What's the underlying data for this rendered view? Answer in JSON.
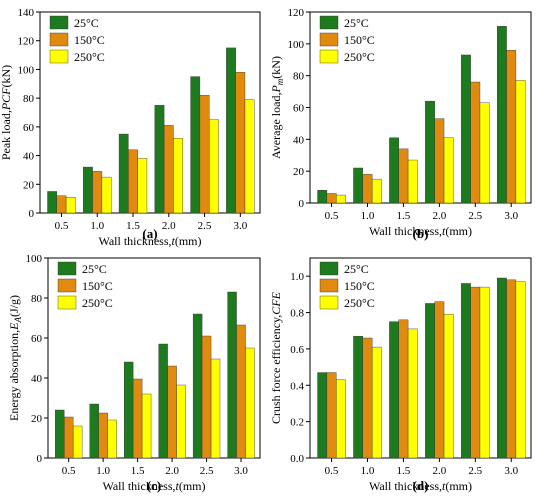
{
  "colors": {
    "c25": "#1e7a1e",
    "c150": "#e08a10",
    "c250": "#ffff00"
  },
  "chart_data": [
    {
      "type": "bar",
      "panel_label": "(a)",
      "categories": [
        "0.5",
        "1.0",
        "1.5",
        "2.0",
        "2.5",
        "3.0"
      ],
      "series": [
        {
          "name": "25°C",
          "values": [
            15,
            32,
            55,
            75,
            95,
            115
          ]
        },
        {
          "name": "150°C",
          "values": [
            12,
            29,
            44,
            61,
            82,
            98
          ]
        },
        {
          "name": "250°C",
          "values": [
            11,
            25,
            38,
            52,
            65,
            79
          ]
        }
      ],
      "xlabel_pre": "Wall thickness,",
      "xlabel_var": "t",
      "xlabel_post": "(mm)",
      "ylabel_pre": "Peak load,",
      "ylabel_var": "PCF",
      "ylabel_sub": "",
      "ylabel_post": "(kN)",
      "ylim": [
        0,
        140
      ],
      "yticks": [
        "0",
        "20",
        "40",
        "60",
        "80",
        "100",
        "120",
        "140"
      ],
      "legend_position": "top-left"
    },
    {
      "type": "bar",
      "panel_label": "(b)",
      "categories": [
        "0.5",
        "1.0",
        "1.5",
        "2.0",
        "2.5",
        "3.0"
      ],
      "series": [
        {
          "name": "25°C",
          "values": [
            8,
            22,
            41,
            64,
            93,
            111
          ]
        },
        {
          "name": "150°C",
          "values": [
            6,
            18,
            34,
            53,
            76,
            96
          ]
        },
        {
          "name": "250°C",
          "values": [
            5,
            15,
            27,
            41,
            63,
            77
          ]
        }
      ],
      "xlabel_pre": "Wall thickness,",
      "xlabel_var": "t",
      "xlabel_post": "(mm)",
      "ylabel_pre": "Average load,",
      "ylabel_var": "P",
      "ylabel_sub": "m",
      "ylabel_post": "(kN)",
      "ylim": [
        0,
        120
      ],
      "yticks": [
        "0",
        "20",
        "40",
        "60",
        "80",
        "100",
        "120"
      ],
      "legend_position": "top-left"
    },
    {
      "type": "bar",
      "panel_label": "(c)",
      "categories": [
        "0.5",
        "1.0",
        "1.5",
        "2.0",
        "2.5",
        "3.0"
      ],
      "series": [
        {
          "name": "25°C",
          "values": [
            24,
            27,
            48,
            57,
            72,
            83
          ]
        },
        {
          "name": "150°C",
          "values": [
            20.5,
            22.5,
            39.5,
            46,
            61,
            66.5
          ]
        },
        {
          "name": "250°C",
          "values": [
            16,
            19,
            32,
            36.5,
            49.5,
            55
          ]
        }
      ],
      "xlabel_pre": "Wall thickness,",
      "xlabel_var": "t",
      "xlabel_post": "(mm)",
      "ylabel_pre": "Energy absorption,",
      "ylabel_var": "E",
      "ylabel_sub": "A",
      "ylabel_post": "(J/g)",
      "ylim": [
        0,
        100
      ],
      "yticks": [
        "0",
        "20",
        "40",
        "60",
        "80",
        "100"
      ],
      "legend_position": "top-left"
    },
    {
      "type": "bar",
      "panel_label": "(d)",
      "categories": [
        "0.5",
        "1.0",
        "1.5",
        "2.0",
        "2.5",
        "3.0"
      ],
      "series": [
        {
          "name": "25°C",
          "values": [
            0.47,
            0.67,
            0.75,
            0.85,
            0.96,
            0.99
          ]
        },
        {
          "name": "150°C",
          "values": [
            0.47,
            0.66,
            0.76,
            0.86,
            0.94,
            0.98
          ]
        },
        {
          "name": "250°C",
          "values": [
            0.43,
            0.61,
            0.71,
            0.79,
            0.94,
            0.97
          ]
        }
      ],
      "xlabel_pre": "Wall thickness,",
      "xlabel_var": "t",
      "xlabel_post": "(mm)",
      "ylabel_pre": "Crush force efficiency,",
      "ylabel_var": "CFE",
      "ylabel_sub": "",
      "ylabel_post": "",
      "ylim": [
        0,
        1.1
      ],
      "yticks": [
        "0.0",
        "0.2",
        "0.4",
        "0.6",
        "0.8",
        "1.0"
      ],
      "legend_position": "top-left"
    }
  ]
}
